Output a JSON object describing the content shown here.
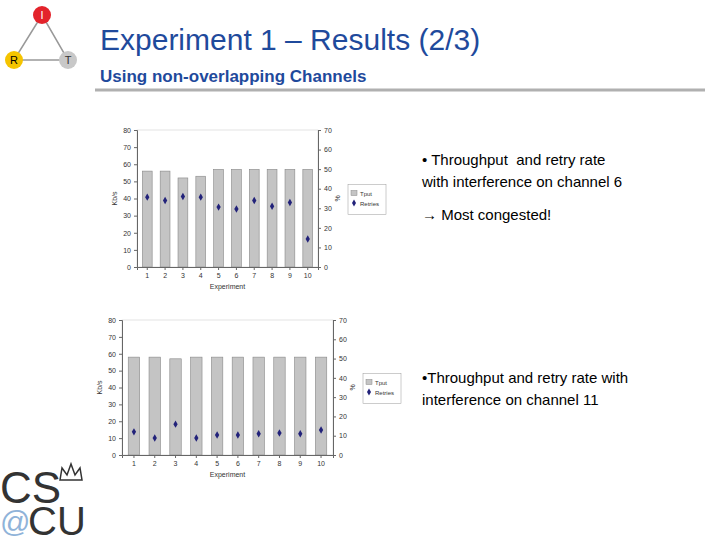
{
  "slide": {
    "title": "Experiment 1 – Results (2/3)",
    "subtitle": "Using non-overlapping Channels",
    "paragraphs": [
      [
        "• Throughput  and retry rate",
        "with interference on channel 6"
      ],
      [
        "→ Most congested!"
      ],
      [
        "•Throughput and retry rate with",
        "interference on channel 11"
      ]
    ],
    "logo_top": [
      "I",
      "R",
      "T"
    ],
    "logo_bottom": [
      "CS",
      "@",
      "CU"
    ]
  },
  "chart_data": [
    {
      "type": "bar",
      "x_label": "Experiment",
      "y_label": "Kb/s",
      "y2_label": "%",
      "categories": [
        "1",
        "2",
        "3",
        "4",
        "5",
        "6",
        "7",
        "8",
        "9",
        "10"
      ],
      "ylim": [
        0,
        80
      ],
      "yticks": [
        0,
        10,
        20,
        30,
        40,
        50,
        60,
        70,
        80
      ],
      "y2lim": [
        0,
        70
      ],
      "y2ticks": [
        0,
        10,
        20,
        30,
        40,
        50,
        60,
        70
      ],
      "legend": "right",
      "series": [
        {
          "name": "Tput",
          "type": "bar",
          "color": "#c4c4c4",
          "values": [
            56,
            56,
            52,
            53,
            57,
            57,
            57,
            57,
            57,
            57
          ]
        },
        {
          "name": "Retries",
          "type": "scatter",
          "marker": "diamond",
          "axis": "y2",
          "color": "#22227a",
          "values": [
            35.7,
            34,
            36,
            35.7,
            30.6,
            29.6,
            34,
            31,
            33,
            14.3
          ]
        }
      ]
    },
    {
      "type": "bar",
      "x_label": "Experiment",
      "y_label": "Kb/s",
      "y2_label": "%",
      "categories": [
        "1",
        "2",
        "3",
        "4",
        "5",
        "6",
        "7",
        "8",
        "9",
        "10"
      ],
      "ylim": [
        0,
        80
      ],
      "yticks": [
        0,
        10,
        20,
        30,
        40,
        50,
        60,
        70,
        80
      ],
      "y2lim": [
        0,
        70
      ],
      "y2ticks": [
        0,
        10,
        20,
        30,
        40,
        50,
        60,
        70
      ],
      "legend": "right",
      "series": [
        {
          "name": "Tput",
          "type": "bar",
          "color": "#c4c4c4",
          "values": [
            58,
            58,
            57,
            58,
            58,
            58,
            58,
            58,
            58,
            58
          ]
        },
        {
          "name": "Retries",
          "type": "scatter",
          "marker": "diamond",
          "axis": "y2",
          "color": "#22227a",
          "values": [
            12,
            8.8,
            16,
            8.8,
            10.4,
            10.4,
            11,
            11.4,
            11,
            13
          ]
        }
      ]
    }
  ]
}
